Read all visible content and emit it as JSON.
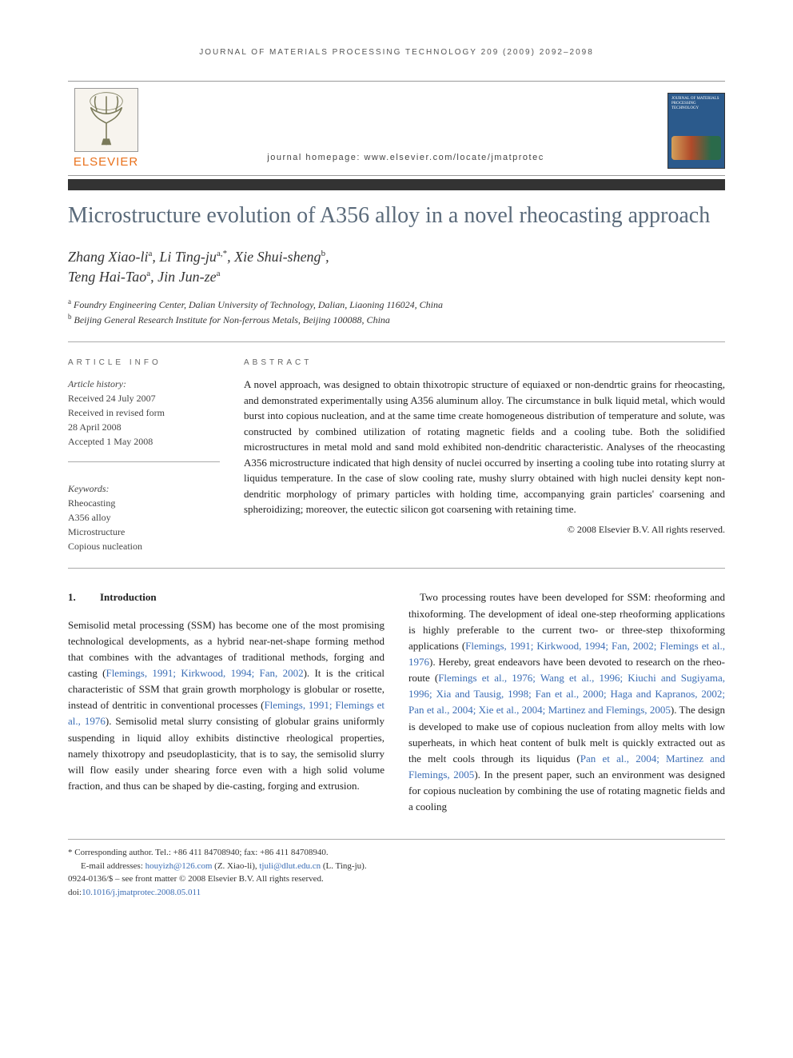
{
  "running_head": "JOURNAL OF MATERIALS PROCESSING TECHNOLOGY 209 (2009) 2092–2098",
  "publisher_name": "ELSEVIER",
  "homepage_label": "journal homepage: www.elsevier.com/locate/jmatprotec",
  "cover_title": "JOURNAL OF MATERIALS PROCESSING TECHNOLOGY",
  "article_title": "Microstructure evolution of A356 alloy in a novel rheocasting approach",
  "authors_line1_html": "Zhang Xiao-li<sup>a</sup>, Li Ting-ju<sup>a,*</sup>, Xie Shui-sheng<sup>b</sup>,",
  "authors_line2_html": "Teng Hai-Tao<sup>a</sup>, Jin Jun-ze<sup>a</sup>",
  "affiliations": [
    {
      "sup": "a",
      "text": "Foundry Engineering Center, Dalian University of Technology, Dalian, Liaoning 116024, China"
    },
    {
      "sup": "b",
      "text": "Beijing General Research Institute for Non-ferrous Metals, Beijing 100088, China"
    }
  ],
  "info_heading": "ARTICLE INFO",
  "abstract_heading": "ABSTRACT",
  "history_label": "Article history:",
  "history_lines": [
    "Received 24 July 2007",
    "Received in revised form",
    "28 April 2008",
    "Accepted 1 May 2008"
  ],
  "keywords_label": "Keywords:",
  "keywords": [
    "Rheocasting",
    "A356 alloy",
    "Microstructure",
    "Copious nucleation"
  ],
  "abstract_text": "A novel approach, was designed to obtain thixotropic structure of equiaxed or non-dendrtic grains for rheocasting, and demonstrated experimentally using A356 aluminum alloy. The circumstance in bulk liquid metal, which would burst into copious nucleation, and at the same time create homogeneous distribution of temperature and solute, was constructed by combined utilization of rotating magnetic fields and a cooling tube. Both the solidified microstructures in metal mold and sand mold exhibited non-dendritic characteristic. Analyses of the rheocasting A356 microstructure indicated that high density of nuclei occurred by inserting a cooling tube into rotating slurry at liquidus temperature. In the case of slow cooling rate, mushy slurry obtained with high nuclei density kept non-dendritic morphology of primary particles with holding time, accompanying grain particles' coarsening and spheroidizing; moreover, the eutectic silicon got coarsening with retaining time.",
  "copyright": "© 2008 Elsevier B.V. All rights reserved.",
  "section_number": "1.",
  "section_title": "Introduction",
  "col1_para": "Semisolid metal processing (SSM) has become one of the most promising technological developments, as a hybrid near-net-shape forming method that combines with the advantages of traditional methods, forging and casting (",
  "col1_cite1": "Flemings, 1991; Kirkwood, 1994; Fan, 2002",
  "col1_para_b": "). It is the critical characteristic of SSM that grain growth morphology is globular or rosette, instead of dentritic in conventional processes (",
  "col1_cite2": "Flemings, 1991; Flemings et al., 1976",
  "col1_para_c": "). Semisolid metal slurry consisting of globular grains uniformly suspending in liquid alloy exhibits distinctive rheological properties, namely thixotropy and pseudoplasticity, that is to say, the semisolid slurry will flow easily under shearing force even with a high solid volume fraction, and thus can be shaped by die-casting, forging and extrusion.",
  "col2_a": "Two processing routes have been developed for SSM: rheoforming and thixoforming. The development of ideal one-step rheoforming applications is highly preferable to the current two- or three-step thixoforming applications (",
  "col2_cite1": "Flemings, 1991; Kirkwood, 1994; Fan, 2002; Flemings et al., 1976",
  "col2_b": "). Hereby, great endeavors have been devoted to research on the rheo-route (",
  "col2_cite2": "Flemings et al., 1976; Wang et al., 1996; Kiuchi and Sugiyama, 1996; Xia and Tausig, 1998; Fan et al., 2000; Haga and Kapranos, 2002; Pan et al., 2004; Xie et al., 2004; Martinez and Flemings, 2005",
  "col2_c": "). The design is developed to make use of copious nucleation from alloy melts with low superheats, in which heat content of bulk melt is quickly extracted out as the melt cools through its liquidus (",
  "col2_cite3": "Pan et al., 2004; Martinez and Flemings, 2005",
  "col2_d": "). In the present paper, such an environment was designed for copious nucleation by combining the use of rotating magnetic fields and a cooling",
  "footer": {
    "corr": "* Corresponding author. Tel.: +86 411 84708940; fax: +86 411 84708940.",
    "email_label": "E-mail addresses: ",
    "email1": "houyizh@126.com",
    "email1_who": " (Z. Xiao-li), ",
    "email2": "tjuli@dlut.edu.cn",
    "email2_who": " (L. Ting-ju).",
    "issn_line": "0924-0136/$ – see front matter © 2008 Elsevier B.V. All rights reserved.",
    "doi_label": "doi:",
    "doi": "10.1016/j.jmatprotec.2008.05.011"
  },
  "colors": {
    "title_color": "#5a6a7a",
    "cite_color": "#3b6db5",
    "publisher_orange": "#e9711c",
    "cover_blue": "#2b5a8c"
  }
}
